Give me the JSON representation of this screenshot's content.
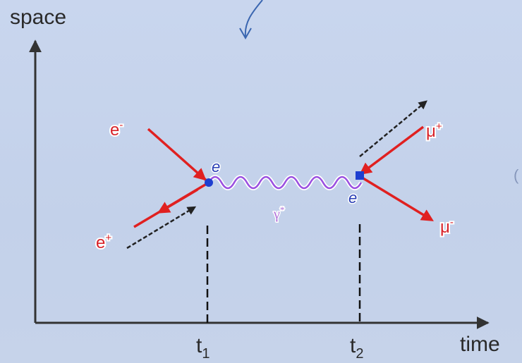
{
  "axes": {
    "y_label": "space",
    "x_label": "time",
    "ticks": [
      "t1",
      "t2"
    ]
  },
  "particles": {
    "electron": "e-",
    "positron": "e+",
    "muon_plus": "μ+",
    "muon_minus": "μ-",
    "vertex1": "e",
    "vertex2": "e",
    "photon": "γ*"
  },
  "colors": {
    "fermion_line": "#e02020",
    "photon_line": "#9a4fe0",
    "vertex": "#1e3fd0",
    "axis": "#333333",
    "annotation_arrow": "#3a66b0"
  }
}
